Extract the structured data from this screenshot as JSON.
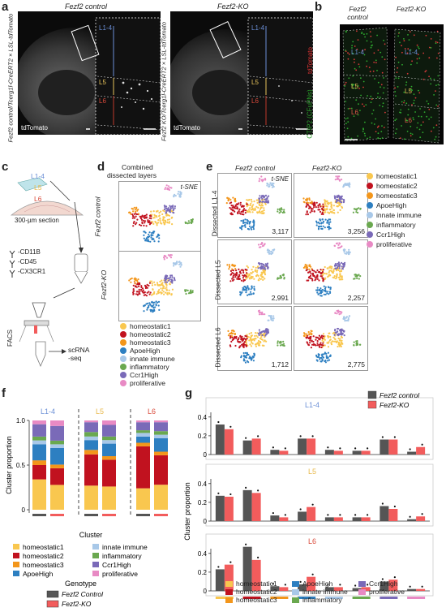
{
  "panel_letters": {
    "a": "a",
    "b": "b",
    "c": "c",
    "d": "d",
    "e": "e",
    "f": "f",
    "g": "g"
  },
  "panel_a": {
    "left_title": "Fezf2 control",
    "right_title": "Fezf2-KO",
    "left_side_label": "Fezf2 control/Tcerg1l-CreERT2 × LSL-tdTomato",
    "right_side_label": "Fezf2 KO/Tcerg1l-CreERT2 × LSL-tdTomato",
    "stain_label": "tdTomato",
    "layers": [
      "L1-4",
      "L5",
      "L6"
    ]
  },
  "panel_b": {
    "col1": "Fezf2 control",
    "col2": "Fezf2-KO",
    "stain_red": "tdTomato",
    "stain_green": "CTIP2 (CFuPNs)",
    "layers": [
      "L1-4",
      "L5",
      "L6"
    ]
  },
  "panel_c": {
    "layers": [
      "L1-4",
      "L5",
      "L6"
    ],
    "section_label": "300-µm section",
    "antibodies": [
      "-CD11B",
      "-CD45",
      "-CX3CR1"
    ],
    "facs": "FACS",
    "scrna": "scRNA\n-seq"
  },
  "panel_d": {
    "title_line1": "Combined",
    "title_line2": "dissected layers",
    "tsne": "t-SNE",
    "row1": "Fezf2 control",
    "row2": "Fezf2-KO"
  },
  "panel_e": {
    "col1": "Fezf2 control",
    "col2": "Fezf2-KO",
    "tsne": "t-SNE",
    "rows": [
      "Dissected L1-4",
      "Dissected L5",
      "Dissected L6"
    ],
    "counts": [
      "3,117",
      "3,256",
      "2,991",
      "2,257",
      "1,712",
      "2,775"
    ]
  },
  "clusters": [
    {
      "name": "homeostatic1",
      "color": "#f9c74f"
    },
    {
      "name": "homeostatic2",
      "color": "#c1121f"
    },
    {
      "name": "homeostatic3",
      "color": "#f3961b"
    },
    {
      "name": "ApoeHigh",
      "color": "#2d7fc1"
    },
    {
      "name": "innate immune",
      "color": "#a8c8e8"
    },
    {
      "name": "inflammatory",
      "color": "#6aa84f"
    },
    {
      "name": "Ccr1High",
      "color": "#7a6ab8"
    },
    {
      "name": "proliferative",
      "color": "#e88ac4"
    }
  ],
  "genotype_title": "Genotype",
  "cluster_title": "Cluster",
  "genotypes": [
    {
      "name": "Fezf2 Control",
      "color": "#555555"
    },
    {
      "name": "Fezf2-KO",
      "color": "#f25c5c"
    }
  ],
  "genotypes_g": [
    "Fezf2 control",
    "Fezf2-KO"
  ],
  "chart_data": [
    {
      "type": "bar",
      "panel": "f",
      "stacked": true,
      "ylabel": "Cluster proportion",
      "ylim": [
        0,
        1
      ],
      "yticks": [
        "0",
        "0.5",
        "1.0"
      ],
      "groups": [
        "L1-4",
        "L5",
        "L6"
      ],
      "bars": [
        {
          "group": "L1-4",
          "genotype": "Fezf2 control",
          "values": [
            0.32,
            0.15,
            0.05,
            0.17,
            0.04,
            0.04,
            0.13,
            0.04
          ]
        },
        {
          "group": "L1-4",
          "genotype": "Fezf2-KO",
          "values": [
            0.27,
            0.18,
            0.04,
            0.18,
            0.04,
            0.04,
            0.16,
            0.06
          ]
        },
        {
          "group": "L5",
          "genotype": "Fezf2 control",
          "values": [
            0.27,
            0.35,
            0.05,
            0.11,
            0.04,
            0.05,
            0.11,
            0.02
          ]
        },
        {
          "group": "L5",
          "genotype": "Fezf2-KO",
          "values": [
            0.26,
            0.3,
            0.04,
            0.14,
            0.04,
            0.04,
            0.13,
            0.05
          ]
        },
        {
          "group": "L6",
          "genotype": "Fezf2 control",
          "values": [
            0.24,
            0.47,
            0.04,
            0.07,
            0.04,
            0.03,
            0.09,
            0.02
          ]
        },
        {
          "group": "L6",
          "genotype": "Fezf2-KO",
          "values": [
            0.28,
            0.33,
            0.04,
            0.15,
            0.04,
            0.04,
            0.1,
            0.02
          ]
        }
      ]
    },
    {
      "type": "bar",
      "panel": "g",
      "ylabel": "Cluster proportion",
      "ylim": [
        0,
        0.45
      ],
      "yticks": [
        "0",
        "0.2",
        "0.4"
      ],
      "categories": [
        "homeostatic1",
        "homeostatic2",
        "homeostatic3",
        "ApoeHigh",
        "innate immune",
        "inflammatory",
        "Ccr1High",
        "proliferative"
      ],
      "layers": [
        {
          "name": "L1-4",
          "control": [
            0.32,
            0.15,
            0.05,
            0.17,
            0.05,
            0.04,
            0.16,
            0.03
          ],
          "ko": [
            0.27,
            0.17,
            0.04,
            0.17,
            0.04,
            0.04,
            0.16,
            0.08
          ]
        },
        {
          "name": "L5",
          "control": [
            0.27,
            0.33,
            0.06,
            0.1,
            0.04,
            0.04,
            0.16,
            0.02
          ],
          "ko": [
            0.26,
            0.3,
            0.04,
            0.15,
            0.04,
            0.04,
            0.13,
            0.05
          ]
        },
        {
          "name": "L6",
          "control": [
            0.23,
            0.47,
            0.05,
            0.07,
            0.04,
            0.03,
            0.1,
            0.02
          ],
          "ko": [
            0.28,
            0.33,
            0.04,
            0.15,
            0.04,
            0.04,
            0.12,
            0.02
          ]
        }
      ]
    }
  ]
}
